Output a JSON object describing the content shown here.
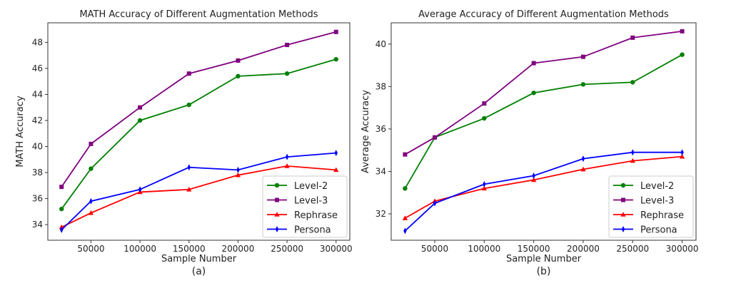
{
  "chart_data": [
    {
      "type": "line",
      "title": "MATH Accuracy of Different Augmentation Methods",
      "xlabel": "Sample Number",
      "ylabel": "MATH Accuracy",
      "caption": "(a)",
      "x": [
        20000,
        50000,
        100000,
        150000,
        200000,
        250000,
        300000
      ],
      "xticks": [
        50000,
        100000,
        150000,
        200000,
        250000,
        300000
      ],
      "xtick_labels": [
        "50000",
        "100000",
        "150000",
        "200000",
        "250000",
        "300000"
      ],
      "yticks": [
        34,
        36,
        38,
        40,
        42,
        44,
        46,
        48
      ],
      "ytick_labels": [
        "34",
        "36",
        "38",
        "40",
        "42",
        "44",
        "46",
        "48"
      ],
      "xlim": [
        6000,
        314000
      ],
      "ylim": [
        32.8,
        49.5
      ],
      "grid": false,
      "legend_position": "lower-right",
      "series": [
        {
          "name": "Level-2",
          "color": "#008000",
          "marker": "circle",
          "values": [
            35.2,
            38.3,
            42.0,
            43.2,
            45.4,
            45.6,
            46.7
          ]
        },
        {
          "name": "Level-3",
          "color": "#800080",
          "marker": "square",
          "values": [
            36.9,
            40.2,
            43.0,
            45.6,
            46.6,
            47.8,
            48.8
          ]
        },
        {
          "name": "Rephrase",
          "color": "#ff0000",
          "marker": "triangle",
          "values": [
            33.8,
            34.9,
            36.5,
            36.7,
            37.8,
            38.5,
            38.2
          ]
        },
        {
          "name": "Persona",
          "color": "#0000ff",
          "marker": "thin-diamond",
          "values": [
            33.6,
            35.8,
            36.7,
            38.4,
            38.2,
            39.2,
            39.5
          ]
        }
      ]
    },
    {
      "type": "line",
      "title": "Average Accuracy of Different Augmentation Methods",
      "xlabel": "Sample Number",
      "ylabel": "Average Accuracy",
      "caption": "(b)",
      "x": [
        20000,
        50000,
        100000,
        150000,
        200000,
        250000,
        300000
      ],
      "xticks": [
        50000,
        100000,
        150000,
        200000,
        250000,
        300000
      ],
      "xtick_labels": [
        "50000",
        "100000",
        "150000",
        "200000",
        "250000",
        "300000"
      ],
      "yticks": [
        32,
        34,
        36,
        38,
        40
      ],
      "ytick_labels": [
        "32",
        "34",
        "36",
        "38",
        "40"
      ],
      "xlim": [
        6000,
        314000
      ],
      "ylim": [
        30.76,
        41.0
      ],
      "grid": false,
      "legend_position": "lower-right",
      "series": [
        {
          "name": "Level-2",
          "color": "#008000",
          "marker": "circle",
          "values": [
            33.2,
            35.6,
            36.5,
            37.7,
            38.1,
            38.2,
            39.5
          ]
        },
        {
          "name": "Level-3",
          "color": "#800080",
          "marker": "square",
          "values": [
            34.8,
            35.6,
            37.2,
            39.1,
            39.4,
            40.3,
            40.6
          ]
        },
        {
          "name": "Rephrase",
          "color": "#ff0000",
          "marker": "triangle",
          "values": [
            31.8,
            32.6,
            33.2,
            33.6,
            34.1,
            34.5,
            34.7
          ]
        },
        {
          "name": "Persona",
          "color": "#0000ff",
          "marker": "thin-diamond",
          "values": [
            31.2,
            32.5,
            33.4,
            33.8,
            34.6,
            34.9,
            34.9
          ]
        }
      ]
    }
  ]
}
